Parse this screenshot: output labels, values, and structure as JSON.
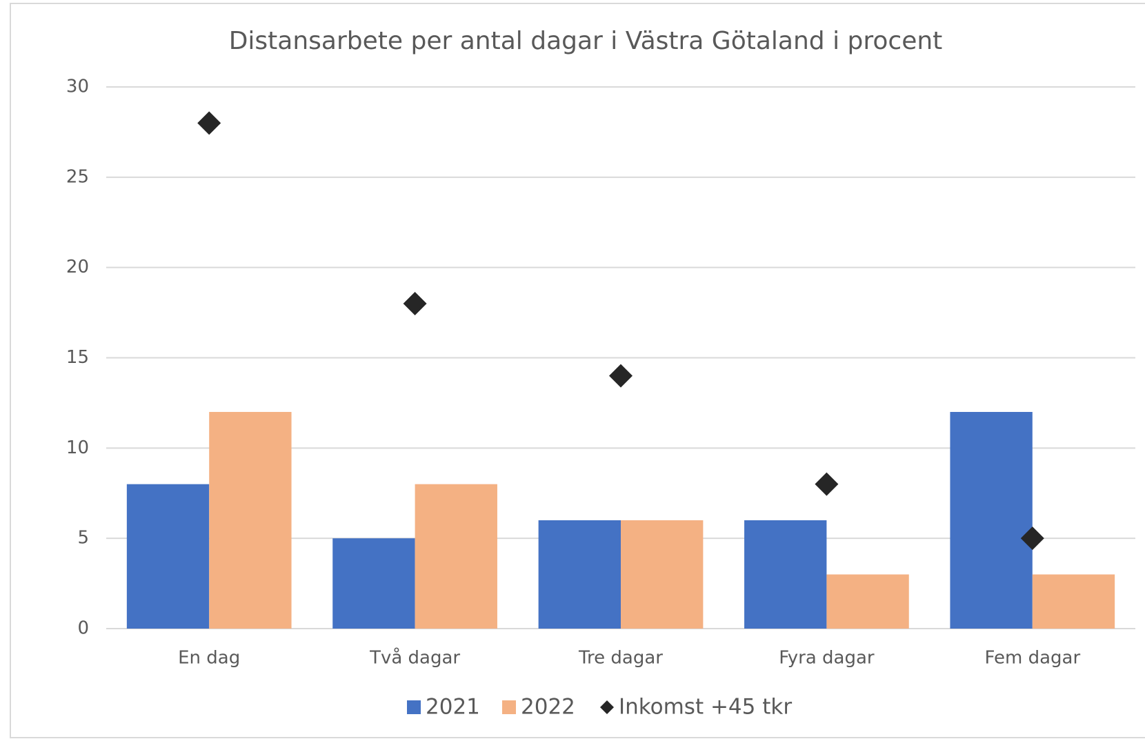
{
  "chart_data": {
    "type": "bar",
    "title": "Distansarbete per antal dagar i Västra Götaland i procent",
    "categories": [
      "En dag",
      "Två dagar",
      "Tre dagar",
      "Fyra dagar",
      "Fem dagar"
    ],
    "series": [
      {
        "name": "2021",
        "color": "#4472c4",
        "values": [
          8,
          5,
          6,
          6,
          12
        ]
      },
      {
        "name": "2022",
        "color": "#f4b183",
        "values": [
          12,
          8,
          6,
          3,
          3
        ]
      },
      {
        "name": "Inkomst +45 tkr",
        "type": "scatter",
        "color": "#262626",
        "values": [
          28,
          18,
          14,
          8,
          5
        ]
      }
    ],
    "ylim": [
      0,
      30
    ],
    "yticks": [
      0,
      5,
      10,
      15,
      20,
      25,
      30
    ],
    "grid": true,
    "legend": "bottom"
  }
}
